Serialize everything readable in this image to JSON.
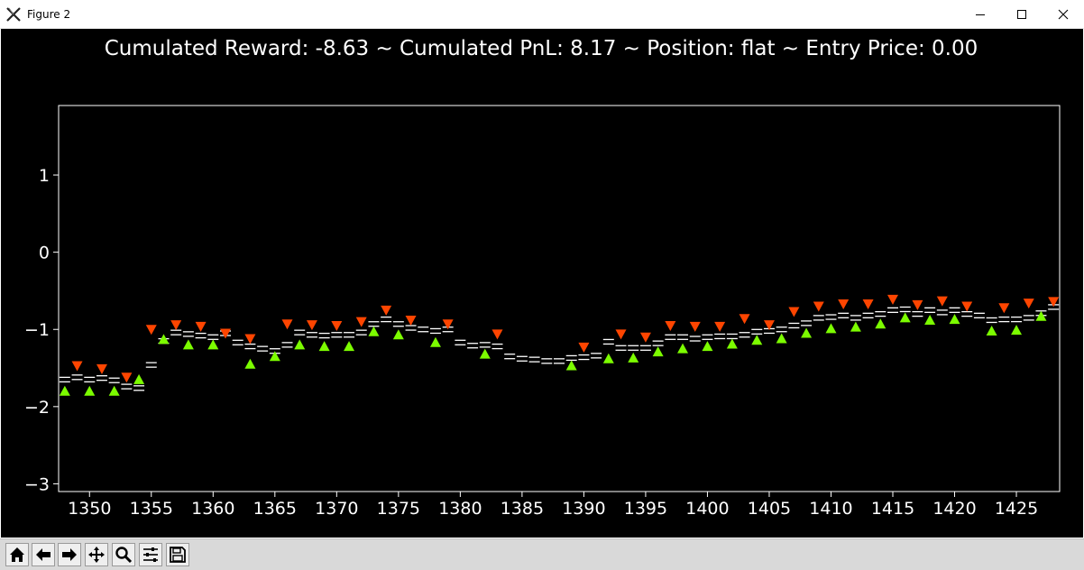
{
  "window": {
    "title": "Figure 2",
    "controls": [
      "minimize-icon",
      "maximize-icon",
      "close-icon"
    ]
  },
  "toolbar": {
    "buttons": [
      {
        "name": "home",
        "icon": "home-icon"
      },
      {
        "name": "back",
        "icon": "arrow-left-icon"
      },
      {
        "name": "forward",
        "icon": "arrow-right-icon"
      },
      {
        "name": "pan",
        "icon": "move-icon"
      },
      {
        "name": "zoom",
        "icon": "magnifier-icon"
      },
      {
        "name": "configure-subplots",
        "icon": "sliders-icon"
      },
      {
        "name": "save",
        "icon": "floppy-disk-icon"
      }
    ]
  },
  "colors": {
    "background": "#000000",
    "price": "#ffffff",
    "buy": "#7cfc00",
    "sell": "#ff4500",
    "toolbar": "#d9d9d9"
  },
  "chart_data": {
    "type": "scatter",
    "title": "Cumulated Reward: -8.63 ~ Cumulated PnL: 8.17 ~ Position: flat ~ Entry Price: 0.00",
    "xlabel": "",
    "ylabel": "",
    "xlim": [
      1347.5,
      1428.5
    ],
    "ylim": [
      -3.1,
      1.9
    ],
    "xticks": [
      1350,
      1355,
      1360,
      1365,
      1370,
      1375,
      1380,
      1385,
      1390,
      1395,
      1400,
      1405,
      1410,
      1415,
      1420,
      1425
    ],
    "yticks": [
      1,
      0,
      -1,
      -2,
      -3
    ],
    "grid": false,
    "series": [
      {
        "role": "price-levels",
        "marker": "horizontal-dash",
        "x": [
          1348,
          1349,
          1350,
          1351,
          1352,
          1353,
          1354,
          1355,
          1356,
          1357,
          1358,
          1359,
          1360,
          1361,
          1362,
          1363,
          1364,
          1365,
          1366,
          1367,
          1368,
          1369,
          1370,
          1371,
          1372,
          1373,
          1374,
          1375,
          1376,
          1377,
          1378,
          1379,
          1380,
          1381,
          1382,
          1383,
          1384,
          1385,
          1386,
          1387,
          1388,
          1389,
          1390,
          1391,
          1392,
          1393,
          1394,
          1395,
          1396,
          1397,
          1398,
          1399,
          1400,
          1401,
          1402,
          1403,
          1404,
          1405,
          1406,
          1407,
          1408,
          1409,
          1410,
          1411,
          1412,
          1413,
          1414,
          1415,
          1416,
          1417,
          1418,
          1419,
          1420,
          1421,
          1422,
          1423,
          1424,
          1425,
          1426,
          1427,
          1428
        ],
        "y": [
          -1.65,
          -1.62,
          -1.65,
          -1.63,
          -1.66,
          -1.74,
          -1.76,
          -1.46,
          -1.15,
          -1.04,
          -1.06,
          -1.08,
          -1.1,
          -1.05,
          -1.17,
          -1.22,
          -1.25,
          -1.28,
          -1.2,
          -1.04,
          -1.07,
          -1.08,
          -1.07,
          -1.07,
          -1.04,
          -0.93,
          -0.87,
          -0.93,
          -0.98,
          -1.0,
          -1.02,
          -1.0,
          -1.17,
          -1.21,
          -1.2,
          -1.22,
          -1.35,
          -1.38,
          -1.39,
          -1.41,
          -1.41,
          -1.37,
          -1.36,
          -1.34,
          -1.16,
          -1.24,
          -1.24,
          -1.24,
          -1.18,
          -1.1,
          -1.1,
          -1.12,
          -1.1,
          -1.09,
          -1.09,
          -1.07,
          -1.03,
          -1.02,
          -1.0,
          -0.95,
          -0.92,
          -0.85,
          -0.84,
          -0.82,
          -0.85,
          -0.82,
          -0.8,
          -0.75,
          -0.74,
          -0.8,
          -0.75,
          -0.78,
          -0.75,
          -0.8,
          -0.82,
          -0.88,
          -0.87,
          -0.87,
          -0.85,
          -0.79,
          -0.71
        ]
      },
      {
        "role": "buy",
        "marker": "triangle-up",
        "x": [
          1348,
          1350,
          1352,
          1354,
          1356,
          1358,
          1360,
          1363,
          1365,
          1367,
          1369,
          1371,
          1373,
          1375,
          1378,
          1382,
          1389,
          1392,
          1394,
          1396,
          1398,
          1400,
          1402,
          1404,
          1406,
          1408,
          1410,
          1412,
          1414,
          1416,
          1418,
          1420,
          1423,
          1425,
          1427
        ],
        "y": [
          -1.8,
          -1.8,
          -1.8,
          -1.65,
          -1.13,
          -1.2,
          -1.2,
          -1.45,
          -1.35,
          -1.2,
          -1.22,
          -1.22,
          -1.03,
          -1.07,
          -1.17,
          -1.32,
          -1.47,
          -1.38,
          -1.37,
          -1.29,
          -1.25,
          -1.22,
          -1.19,
          -1.14,
          -1.12,
          -1.05,
          -0.99,
          -0.97,
          -0.93,
          -0.85,
          -0.88,
          -0.87,
          -1.02,
          -1.01,
          -0.83
        ]
      },
      {
        "role": "sell",
        "marker": "triangle-down",
        "x": [
          1349,
          1351,
          1353,
          1355,
          1357,
          1359,
          1361,
          1363,
          1366,
          1368,
          1370,
          1372,
          1374,
          1376,
          1379,
          1383,
          1390,
          1393,
          1395,
          1397,
          1399,
          1401,
          1403,
          1405,
          1407,
          1409,
          1411,
          1413,
          1415,
          1417,
          1419,
          1421,
          1424,
          1426,
          1428
        ],
        "y": [
          -1.47,
          -1.51,
          -1.62,
          -1.0,
          -0.94,
          -0.96,
          -1.05,
          -1.12,
          -0.93,
          -0.94,
          -0.95,
          -0.9,
          -0.75,
          -0.88,
          -0.93,
          -1.06,
          -1.23,
          -1.06,
          -1.1,
          -0.95,
          -0.96,
          -0.96,
          -0.86,
          -0.94,
          -0.77,
          -0.7,
          -0.67,
          -0.67,
          -0.61,
          -0.68,
          -0.63,
          -0.7,
          -0.72,
          -0.66,
          -0.64
        ]
      }
    ]
  }
}
